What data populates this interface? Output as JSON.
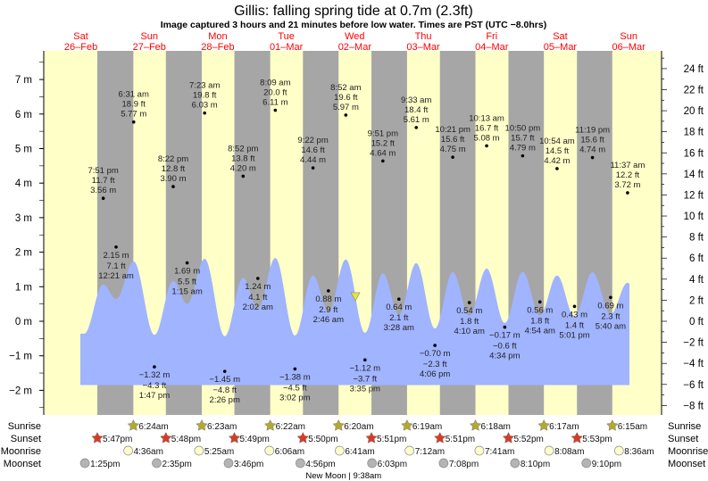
{
  "title": "Gillis: falling  spring tide at 0.7m (2.3ft)",
  "subtitle": "Image captured 3 hours and 21 minutes before low water. Times are PST (UTC −8.0hrs)",
  "colors": {
    "day": "#ffffc8",
    "night": "#a6a6a6",
    "water": "#a0b4ff",
    "date_label": "#ff0000",
    "sunrise": "#b4a832",
    "sunset": "#d83a2a",
    "moonrise": "#ffffc8",
    "moonset": "#b4b4b4",
    "now_marker": "#e6e632"
  },
  "days": [
    {
      "dow": "Sat",
      "date": "26–Feb"
    },
    {
      "dow": "Sun",
      "date": "27–Feb"
    },
    {
      "dow": "Mon",
      "date": "28–Feb"
    },
    {
      "dow": "Tue",
      "date": "01–Mar"
    },
    {
      "dow": "Wed",
      "date": "02–Mar"
    },
    {
      "dow": "Thu",
      "date": "03–Mar"
    },
    {
      "dow": "Fri",
      "date": "04–Mar"
    },
    {
      "dow": "Sat",
      "date": "05–Mar"
    },
    {
      "dow": "Sun",
      "date": "06–Mar"
    }
  ],
  "chart_data": {
    "type": "area",
    "title": "Gillis: falling  spring tide at 0.7m (2.3ft)",
    "left_axis": {
      "unit": "m",
      "range": [
        -2.5,
        7.5
      ],
      "ticks": [
        "7 m",
        "6 m",
        "5 m",
        "4 m",
        "3 m",
        "2 m",
        "1 m",
        "0 m",
        "−1 m",
        "−2 m"
      ],
      "tick_values": [
        7,
        6,
        5,
        4,
        3,
        2,
        1,
        0,
        -1,
        -2
      ]
    },
    "right_axis": {
      "unit": "ft",
      "ticks": [
        "24 ft",
        "22 ft",
        "20 ft",
        "18 ft",
        "16 ft",
        "14 ft",
        "12 ft",
        "10 ft",
        "8 ft",
        "6 ft",
        "4 ft",
        "2 ft",
        "0 ft",
        "−2 ft",
        "−4 ft",
        "−6 ft",
        "−8 ft"
      ],
      "tick_values": [
        24,
        22,
        20,
        18,
        16,
        14,
        12,
        10,
        8,
        6,
        4,
        2,
        0,
        -2,
        -4,
        -6,
        -8
      ]
    },
    "current": {
      "height_m": 0.7,
      "height_ft": 2.3,
      "state": "falling",
      "day": 4,
      "time": "12:14"
    },
    "events": [
      {
        "day": 0,
        "time": "7:51 pm",
        "type": "high",
        "m": "3.56 m",
        "ft": "11.7 ft",
        "value": 3.56
      },
      {
        "day": 1,
        "time": "12:21 am",
        "type": "low",
        "m": "2.15 m",
        "ft": "7.1 ft",
        "value": 2.15
      },
      {
        "day": 1,
        "time": "6:31 am",
        "type": "high",
        "m": "5.77 m",
        "ft": "18.9 ft",
        "value": 5.77
      },
      {
        "day": 1,
        "time": "1:47 pm",
        "type": "low",
        "m": "−1.32 m",
        "ft": "−4.3 ft",
        "value": -1.32
      },
      {
        "day": 1,
        "time": "8:22 pm",
        "type": "high",
        "m": "3.90 m",
        "ft": "12.8 ft",
        "value": 3.9
      },
      {
        "day": 2,
        "time": "1:15 am",
        "type": "low",
        "m": "1.69 m",
        "ft": "5.5 ft",
        "value": 1.69
      },
      {
        "day": 2,
        "time": "7:23 am",
        "type": "high",
        "m": "6.03 m",
        "ft": "19.8 ft",
        "value": 6.03
      },
      {
        "day": 2,
        "time": "2:26 pm",
        "type": "low",
        "m": "−1.45 m",
        "ft": "−4.8 ft",
        "value": -1.45
      },
      {
        "day": 2,
        "time": "8:52 pm",
        "type": "high",
        "m": "4.20 m",
        "ft": "13.8 ft",
        "value": 4.2
      },
      {
        "day": 3,
        "time": "2:02 am",
        "type": "low",
        "m": "1.24 m",
        "ft": "4.1 ft",
        "value": 1.24
      },
      {
        "day": 3,
        "time": "8:09 am",
        "type": "high",
        "m": "6.11 m",
        "ft": "20.0 ft",
        "value": 6.11
      },
      {
        "day": 3,
        "time": "3:02 pm",
        "type": "low",
        "m": "−1.38 m",
        "ft": "−4.5 ft",
        "value": -1.38
      },
      {
        "day": 3,
        "time": "9:22 pm",
        "type": "high",
        "m": "4.44 m",
        "ft": "14.6 ft",
        "value": 4.44
      },
      {
        "day": 4,
        "time": "2:46 am",
        "type": "low",
        "m": "0.88 m",
        "ft": "2.9 ft",
        "value": 0.88
      },
      {
        "day": 4,
        "time": "8:52 am",
        "type": "high",
        "m": "5.97 m",
        "ft": "19.6 ft",
        "value": 5.97
      },
      {
        "day": 4,
        "time": "3:35 pm",
        "type": "low",
        "m": "−1.12 m",
        "ft": "−3.7 ft",
        "value": -1.12
      },
      {
        "day": 4,
        "time": "9:51 pm",
        "type": "high",
        "m": "4.64 m",
        "ft": "15.2 ft",
        "value": 4.64
      },
      {
        "day": 5,
        "time": "3:28 am",
        "type": "low",
        "m": "0.64 m",
        "ft": "2.1 ft",
        "value": 0.64
      },
      {
        "day": 5,
        "time": "9:33 am",
        "type": "high",
        "m": "5.61 m",
        "ft": "18.4 ft",
        "value": 5.61
      },
      {
        "day": 5,
        "time": "4:06 pm",
        "type": "low",
        "m": "−0.70 m",
        "ft": "−2.3 ft",
        "value": -0.7
      },
      {
        "day": 5,
        "time": "10:21 pm",
        "type": "high",
        "m": "4.75 m",
        "ft": "15.6 ft",
        "value": 4.75
      },
      {
        "day": 6,
        "time": "4:10 am",
        "type": "low",
        "m": "0.54 m",
        "ft": "1.8 ft",
        "value": 0.54
      },
      {
        "day": 6,
        "time": "10:13 am",
        "type": "high",
        "m": "5.08 m",
        "ft": "16.7 ft",
        "value": 5.08
      },
      {
        "day": 6,
        "time": "4:34 pm",
        "type": "low",
        "m": "−0.17 m",
        "ft": "−0.6 ft",
        "value": -0.17
      },
      {
        "day": 6,
        "time": "10:50 pm",
        "type": "high",
        "m": "4.79 m",
        "ft": "15.7 ft",
        "value": 4.79
      },
      {
        "day": 7,
        "time": "4:54 am",
        "type": "low",
        "m": "0.56 m",
        "ft": "1.8 ft",
        "value": 0.56
      },
      {
        "day": 7,
        "time": "10:54 am",
        "type": "high",
        "m": "4.42 m",
        "ft": "14.5 ft",
        "value": 4.42
      },
      {
        "day": 7,
        "time": "5:01 pm",
        "type": "low",
        "m": "0.43 m",
        "ft": "1.4 ft",
        "value": 0.43
      },
      {
        "day": 7,
        "time": "11:19 pm",
        "type": "high",
        "m": "4.74 m",
        "ft": "15.6 ft",
        "value": 4.74
      },
      {
        "day": 8,
        "time": "5:40 am",
        "type": "low",
        "m": "0.69 m",
        "ft": "2.3 ft",
        "value": 0.69
      },
      {
        "day": 8,
        "time": "11:37 am",
        "type": "high",
        "m": "3.72 m",
        "ft": "12.2 ft",
        "value": 3.72
      }
    ]
  },
  "almanac": {
    "row_labels": {
      "sunrise": "Sunrise",
      "sunset": "Sunset",
      "moonrise": "Moonrise",
      "moonset": "Moonset"
    },
    "sunrise": [
      {
        "day": 1,
        "time": "6:24am"
      },
      {
        "day": 2,
        "time": "6:23am"
      },
      {
        "day": 3,
        "time": "6:22am"
      },
      {
        "day": 4,
        "time": "6:20am"
      },
      {
        "day": 5,
        "time": "6:19am"
      },
      {
        "day": 6,
        "time": "6:18am"
      },
      {
        "day": 7,
        "time": "6:17am"
      },
      {
        "day": 8,
        "time": "6:15am"
      }
    ],
    "sunset": [
      {
        "day": 0,
        "time": "5:47pm"
      },
      {
        "day": 1,
        "time": "5:48pm"
      },
      {
        "day": 2,
        "time": "5:49pm"
      },
      {
        "day": 3,
        "time": "5:50pm"
      },
      {
        "day": 4,
        "time": "5:51pm"
      },
      {
        "day": 5,
        "time": "5:51pm"
      },
      {
        "day": 6,
        "time": "5:52pm"
      },
      {
        "day": 7,
        "time": "5:53pm"
      }
    ],
    "moonrise": [
      {
        "day": 1,
        "time": "4:36am"
      },
      {
        "day": 2,
        "time": "5:25am"
      },
      {
        "day": 3,
        "time": "6:06am"
      },
      {
        "day": 4,
        "time": "6:41am"
      },
      {
        "day": 5,
        "time": "7:12am"
      },
      {
        "day": 6,
        "time": "7:41am"
      },
      {
        "day": 7,
        "time": "8:08am"
      },
      {
        "day": 8,
        "time": "8:36am"
      }
    ],
    "moonset": [
      {
        "day": 0,
        "time": "1:25pm"
      },
      {
        "day": 1,
        "time": "2:35pm"
      },
      {
        "day": 2,
        "time": "3:46pm"
      },
      {
        "day": 3,
        "time": "4:56pm"
      },
      {
        "day": 4,
        "time": "6:03pm"
      },
      {
        "day": 5,
        "time": "7:08pm"
      },
      {
        "day": 6,
        "time": "8:10pm"
      },
      {
        "day": 7,
        "time": "9:10pm"
      }
    ],
    "moon_phase": {
      "day": 4,
      "time": "9:38am",
      "label": "New Moon | 9:38am"
    }
  }
}
